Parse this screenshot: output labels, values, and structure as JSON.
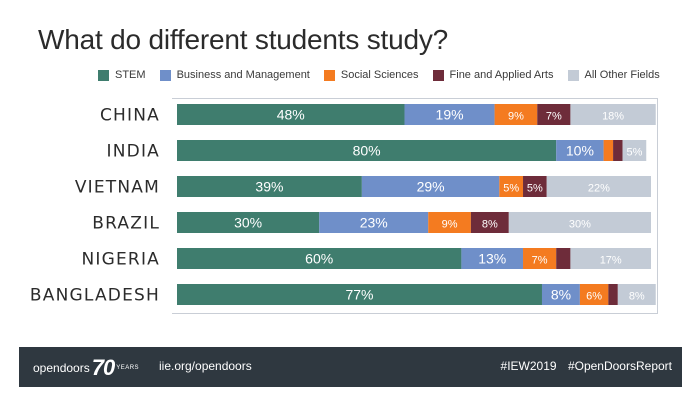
{
  "title": "What do different students study?",
  "legend": [
    {
      "label": "STEM",
      "color": "#3f7d6e"
    },
    {
      "label": "Business and Management",
      "color": "#6f8fc9"
    },
    {
      "label": "Social Sciences",
      "color": "#f47b20"
    },
    {
      "label": "Fine and Applied Arts",
      "color": "#6e2c3a"
    },
    {
      "label": "All Other Fields",
      "color": "#c3cbd6"
    }
  ],
  "chart_data": {
    "type": "bar",
    "orientation": "horizontal",
    "stacked": true,
    "categories": [
      "CHINA",
      "INDIA",
      "VIETNAM",
      "BRAZIL",
      "NIGERIA",
      "BANGLADESH"
    ],
    "series": [
      {
        "name": "STEM",
        "color": "#3f7d6e",
        "values": [
          48,
          80,
          39,
          30,
          60,
          77
        ],
        "labels": [
          "48%",
          "80%",
          "39%",
          "30%",
          "60%",
          "77%"
        ]
      },
      {
        "name": "Business and Management",
        "color": "#6f8fc9",
        "values": [
          19,
          10,
          29,
          23,
          13,
          8
        ],
        "labels": [
          "19%",
          "10%",
          "29%",
          "23%",
          "13%",
          "8%"
        ]
      },
      {
        "name": "Social Sciences",
        "color": "#f47b20",
        "values": [
          9,
          2,
          5,
          9,
          7,
          6
        ],
        "labels": [
          "9%",
          "",
          "5%",
          "9%",
          "7%",
          "6%"
        ]
      },
      {
        "name": "Fine and Applied Arts",
        "color": "#6e2c3a",
        "values": [
          7,
          2,
          5,
          8,
          3,
          2
        ],
        "labels": [
          "7%",
          "",
          "5%",
          "8%",
          "",
          ""
        ]
      },
      {
        "name": "All Other Fields",
        "color": "#c3cbd6",
        "values": [
          18,
          5,
          22,
          30,
          17,
          8
        ],
        "labels": [
          "18%",
          "5%",
          "22%",
          "30%",
          "17%",
          "8%"
        ]
      }
    ],
    "xlim": [
      0,
      100
    ],
    "grid": false,
    "legend_position": "top"
  },
  "footer": {
    "logo_word": "opendoors",
    "logo_number": "70",
    "logo_years": "YEARS",
    "url": "iie.org/opendoors",
    "hashtags": [
      "#IEW2019",
      "#OpenDoorsReport"
    ]
  }
}
